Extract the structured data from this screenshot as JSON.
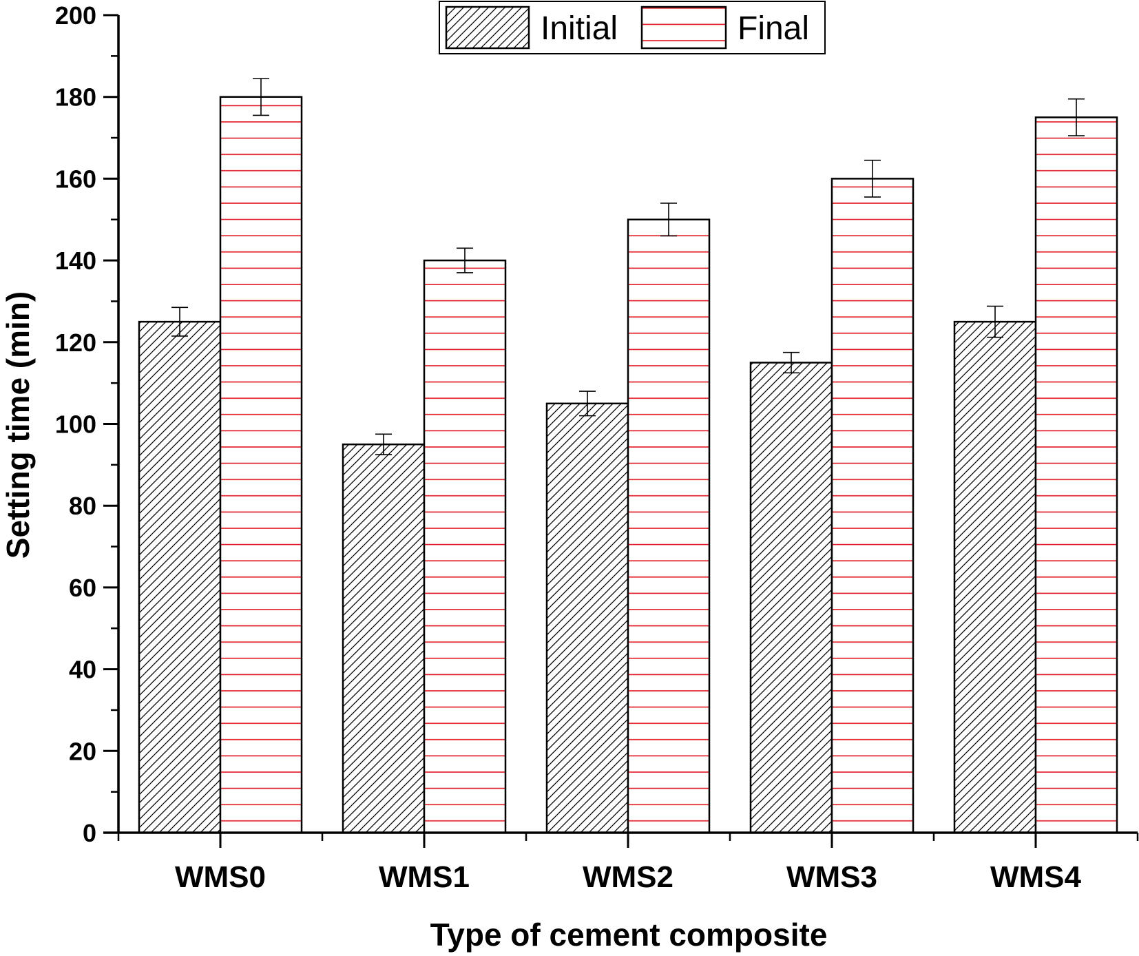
{
  "chart_data": {
    "type": "bar",
    "title": "",
    "xlabel": "Type of cement composite",
    "ylabel": "Setting time (min)",
    "ylim": [
      0,
      200
    ],
    "yticks": [
      0,
      20,
      40,
      60,
      80,
      100,
      120,
      140,
      160,
      180,
      200
    ],
    "categories": [
      "WMS0",
      "WMS1",
      "WMS2",
      "WMS3",
      "WMS4"
    ],
    "series": [
      {
        "name": "Initial",
        "values": [
          125,
          95,
          105,
          115,
          125
        ],
        "errors": [
          3.5,
          2.5,
          3,
          2.5,
          3.8
        ],
        "pattern": "diagonal-hatch",
        "color": "#000000"
      },
      {
        "name": "Final",
        "values": [
          180,
          140,
          150,
          160,
          175
        ],
        "errors": [
          4.5,
          3,
          4,
          4.5,
          4.5
        ],
        "pattern": "horizontal-lines",
        "color": "#e0141e"
      }
    ],
    "legend": {
      "position": "top-center",
      "entries": [
        "Initial",
        "Final"
      ]
    }
  }
}
